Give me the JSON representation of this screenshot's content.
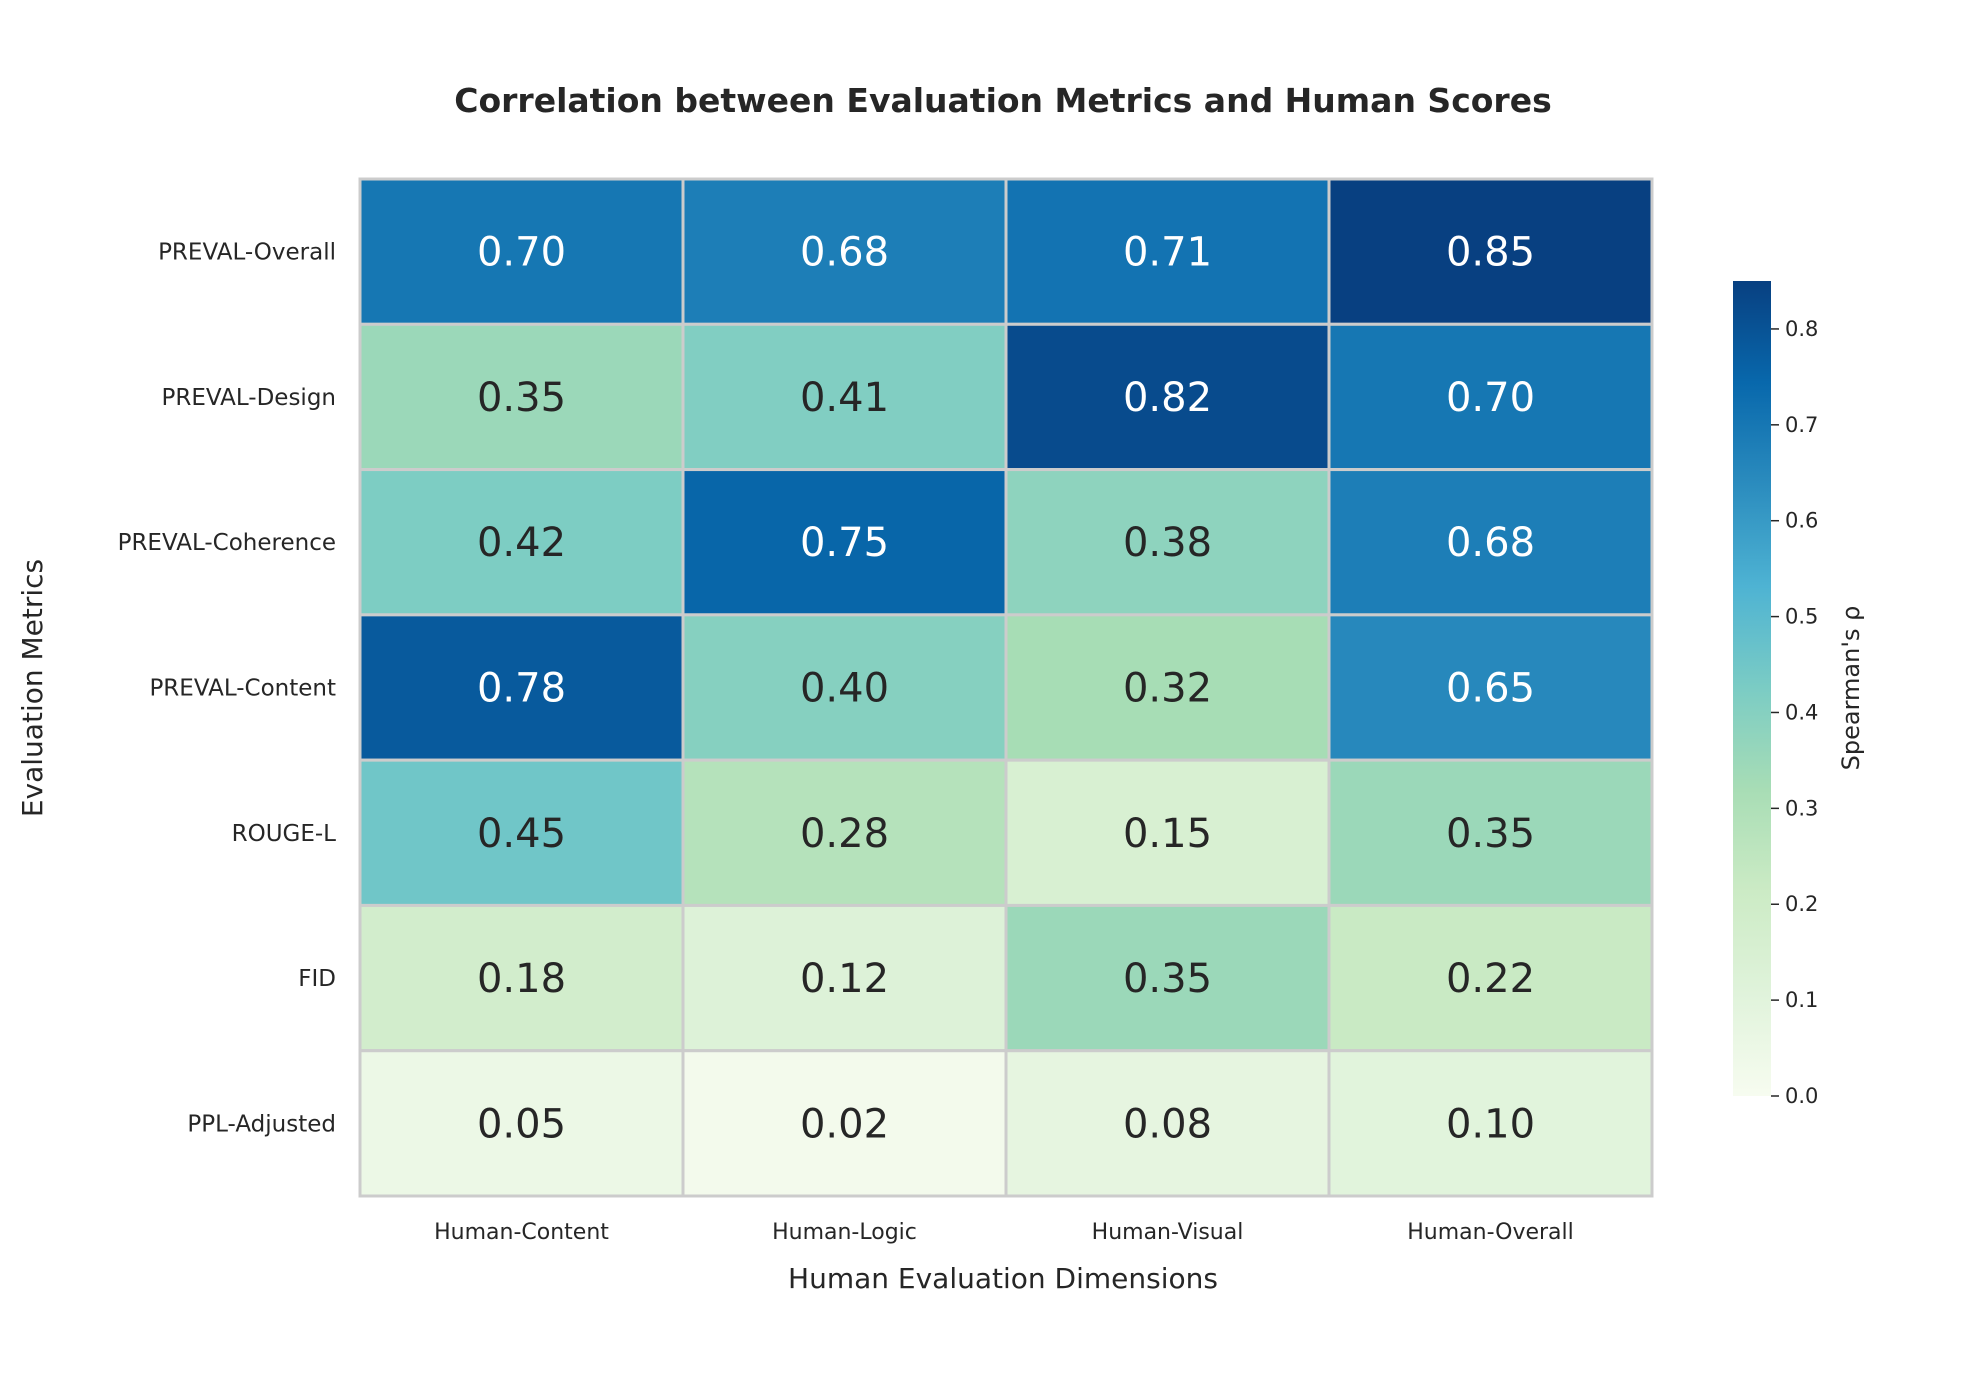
{
  "chart_data": {
    "type": "heatmap",
    "title": "Correlation between Evaluation Metrics and Human Scores",
    "xlabel": "Human Evaluation Dimensions",
    "ylabel": "Evaluation Metrics",
    "columns": [
      "Human-Content",
      "Human-Logic",
      "Human-Visual",
      "Human-Overall"
    ],
    "rows": [
      "PREVAL-Overall",
      "PREVAL-Design",
      "PREVAL-Coherence",
      "PREVAL-Content",
      "ROUGE-L",
      "FID",
      "PPL-Adjusted"
    ],
    "values": [
      [
        0.7,
        0.68,
        0.71,
        0.85
      ],
      [
        0.35,
        0.41,
        0.82,
        0.7
      ],
      [
        0.42,
        0.75,
        0.38,
        0.68
      ],
      [
        0.78,
        0.4,
        0.32,
        0.65
      ],
      [
        0.45,
        0.28,
        0.15,
        0.35
      ],
      [
        0.18,
        0.12,
        0.35,
        0.22
      ],
      [
        0.05,
        0.02,
        0.08,
        0.1
      ]
    ],
    "value_labels": [
      [
        "0.70",
        "0.68",
        "0.71",
        "0.85"
      ],
      [
        "0.35",
        "0.41",
        "0.82",
        "0.70"
      ],
      [
        "0.42",
        "0.75",
        "0.38",
        "0.68"
      ],
      [
        "0.78",
        "0.40",
        "0.32",
        "0.65"
      ],
      [
        "0.45",
        "0.28",
        "0.15",
        "0.35"
      ],
      [
        "0.18",
        "0.12",
        "0.35",
        "0.22"
      ],
      [
        "0.05",
        "0.02",
        "0.08",
        "0.10"
      ]
    ],
    "colorbar": {
      "label": "Spearman's ρ",
      "range": [
        0,
        0.85
      ],
      "ticks": [
        "0.0",
        "0.1",
        "0.2",
        "0.3",
        "0.4",
        "0.5",
        "0.6",
        "0.7",
        "0.8"
      ],
      "colormap": "GnBu",
      "colormap_stops": [
        "#f7fcf0",
        "#e0f3db",
        "#ccebc5",
        "#a8ddb5",
        "#7bccc4",
        "#4eb3d3",
        "#2b8cbe",
        "#0868ac",
        "#084081"
      ],
      "vmin": 0,
      "vmax": 0.85
    },
    "grid_line_color": "#cccccc"
  }
}
